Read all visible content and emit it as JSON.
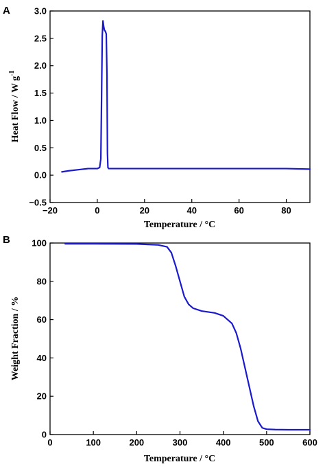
{
  "chart_data": [
    {
      "panel": "A",
      "type": "line",
      "title": "",
      "xlabel": "Temperature / °C",
      "ylabel": "Heat Flow / W g",
      "ylabel_superscript": "-1",
      "xlim": [
        -20,
        90
      ],
      "ylim": [
        -0.5,
        3.0
      ],
      "xticks": [
        -20,
        0,
        20,
        40,
        60,
        80
      ],
      "xtick_labels": [
        "−20",
        "0",
        "20",
        "40",
        "60",
        "80"
      ],
      "yticks": [
        -0.5,
        0.0,
        0.5,
        1.0,
        1.5,
        2.0,
        2.5,
        3.0
      ],
      "ytick_labels": [
        "−0.5",
        "0.0",
        "0.5",
        "1.0",
        "1.5",
        "2.0",
        "2.5",
        "3.0"
      ],
      "grid": false,
      "series": [
        {
          "color": "#1a1acc",
          "x": [
            -15,
            -12,
            -8,
            -4,
            0,
            1.0,
            1.5,
            1.8,
            2.1,
            2.4,
            2.7,
            3.0,
            3.4,
            3.8,
            4.1,
            4.3,
            4.5,
            4.8,
            5.5,
            10,
            20,
            40,
            60,
            80,
            90
          ],
          "y": [
            0.06,
            0.08,
            0.1,
            0.12,
            0.12,
            0.14,
            0.3,
            1.4,
            2.55,
            2.82,
            2.72,
            2.65,
            2.63,
            2.58,
            1.8,
            0.4,
            0.14,
            0.12,
            0.12,
            0.12,
            0.12,
            0.12,
            0.12,
            0.12,
            0.11
          ]
        }
      ]
    },
    {
      "panel": "B",
      "type": "line",
      "title": "",
      "xlabel": "Temperature / °C",
      "ylabel": "Weight Fraction / %",
      "xlim": [
        0,
        600
      ],
      "ylim": [
        0,
        100
      ],
      "xticks": [
        0,
        100,
        200,
        300,
        400,
        500,
        600
      ],
      "xtick_labels": [
        "0",
        "100",
        "200",
        "300",
        "400",
        "500",
        "600"
      ],
      "yticks": [
        0,
        20,
        40,
        60,
        80,
        100
      ],
      "ytick_labels": [
        "0",
        "20",
        "40",
        "60",
        "80",
        "100"
      ],
      "grid": false,
      "series": [
        {
          "color": "#1a1acc",
          "x": [
            35,
            100,
            200,
            250,
            270,
            280,
            290,
            300,
            310,
            320,
            330,
            350,
            380,
            400,
            420,
            430,
            440,
            450,
            460,
            470,
            480,
            490,
            500,
            520,
            550,
            600
          ],
          "y": [
            99.6,
            99.6,
            99.5,
            99.0,
            98.0,
            95.0,
            88.0,
            80.0,
            72.0,
            68.0,
            66.0,
            64.5,
            63.5,
            62.0,
            58.0,
            53.0,
            45.0,
            35.0,
            25.0,
            15.0,
            7.0,
            3.5,
            2.8,
            2.6,
            2.5,
            2.5
          ]
        }
      ]
    }
  ]
}
